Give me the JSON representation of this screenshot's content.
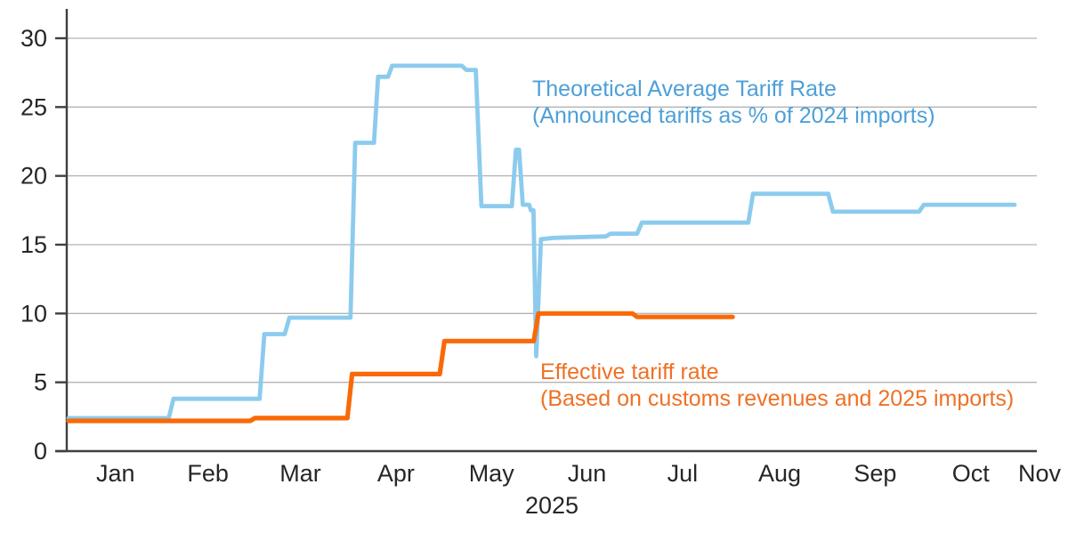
{
  "chart_data": {
    "type": "line",
    "title": "",
    "grid": true,
    "background": "#ffffff",
    "style": {
      "axis_color": "#3f3f3f",
      "grid_color": "#b3b3b3",
      "tick_text_color": "#262626"
    },
    "y_axis": {
      "ticks": [
        0,
        5,
        10,
        15,
        20,
        25,
        30
      ],
      "ylim": [
        0,
        30
      ],
      "unit": "%"
    },
    "x_axis": {
      "months": [
        "Jan",
        "Feb",
        "Mar",
        "Apr",
        "May",
        "Jun",
        "Jul",
        "Aug",
        "Sep",
        "Oct",
        "Nov"
      ],
      "year_label": "2025"
    },
    "series": [
      {
        "name": "theoretical-average-tariff-rate",
        "label_line1": "Theoretical Average Tariff Rate",
        "label_line2": "(Announced tariffs as % of 2024 imports)",
        "color": "#8CCBEE",
        "label_color": "#4DA0D8",
        "points_day_value": [
          [
            1,
            2.4
          ],
          [
            33,
            2.4
          ],
          [
            34.5,
            3.8
          ],
          [
            62,
            3.8
          ],
          [
            63.5,
            8.5
          ],
          [
            70,
            8.5
          ],
          [
            71.5,
            9.7
          ],
          [
            91,
            9.7
          ],
          [
            92.5,
            22.4
          ],
          [
            98.5,
            22.4
          ],
          [
            99.8,
            27.2
          ],
          [
            103,
            27.2
          ],
          [
            104.3,
            28.0
          ],
          [
            126.5,
            28.0
          ],
          [
            128,
            27.7
          ],
          [
            131,
            27.7
          ],
          [
            132.8,
            17.8
          ],
          [
            142.5,
            17.8
          ],
          [
            143.8,
            21.9
          ],
          [
            144.8,
            21.9
          ],
          [
            146,
            17.9
          ],
          [
            148,
            17.9
          ],
          [
            148.6,
            17.5
          ],
          [
            149.4,
            17.5
          ],
          [
            150.3,
            6.9
          ],
          [
            151.8,
            15.4
          ],
          [
            156,
            15.5
          ],
          [
            172.5,
            15.6
          ],
          [
            174,
            15.8
          ],
          [
            182.5,
            15.8
          ],
          [
            184,
            16.6
          ],
          [
            218,
            16.6
          ],
          [
            219.5,
            18.7
          ],
          [
            243.5,
            18.7
          ],
          [
            245,
            17.4
          ],
          [
            272.5,
            17.4
          ],
          [
            274,
            17.9
          ],
          [
            303,
            17.9
          ]
        ]
      },
      {
        "name": "effective-tariff-rate",
        "label_line1": "Effective tariff rate",
        "label_line2": "(Based on customs revenues and 2025 imports)",
        "color": "#F96908",
        "label_color": "#EE7125",
        "points_day_value": [
          [
            1,
            2.2
          ],
          [
            59,
            2.2
          ],
          [
            60.5,
            2.4
          ],
          [
            90,
            2.4
          ],
          [
            91.5,
            5.6
          ],
          [
            119.5,
            5.6
          ],
          [
            121,
            8.0
          ],
          [
            149.5,
            8.0
          ],
          [
            151,
            10.0
          ],
          [
            181,
            10.0
          ],
          [
            182.5,
            9.75
          ],
          [
            213,
            9.75
          ]
        ]
      }
    ]
  }
}
